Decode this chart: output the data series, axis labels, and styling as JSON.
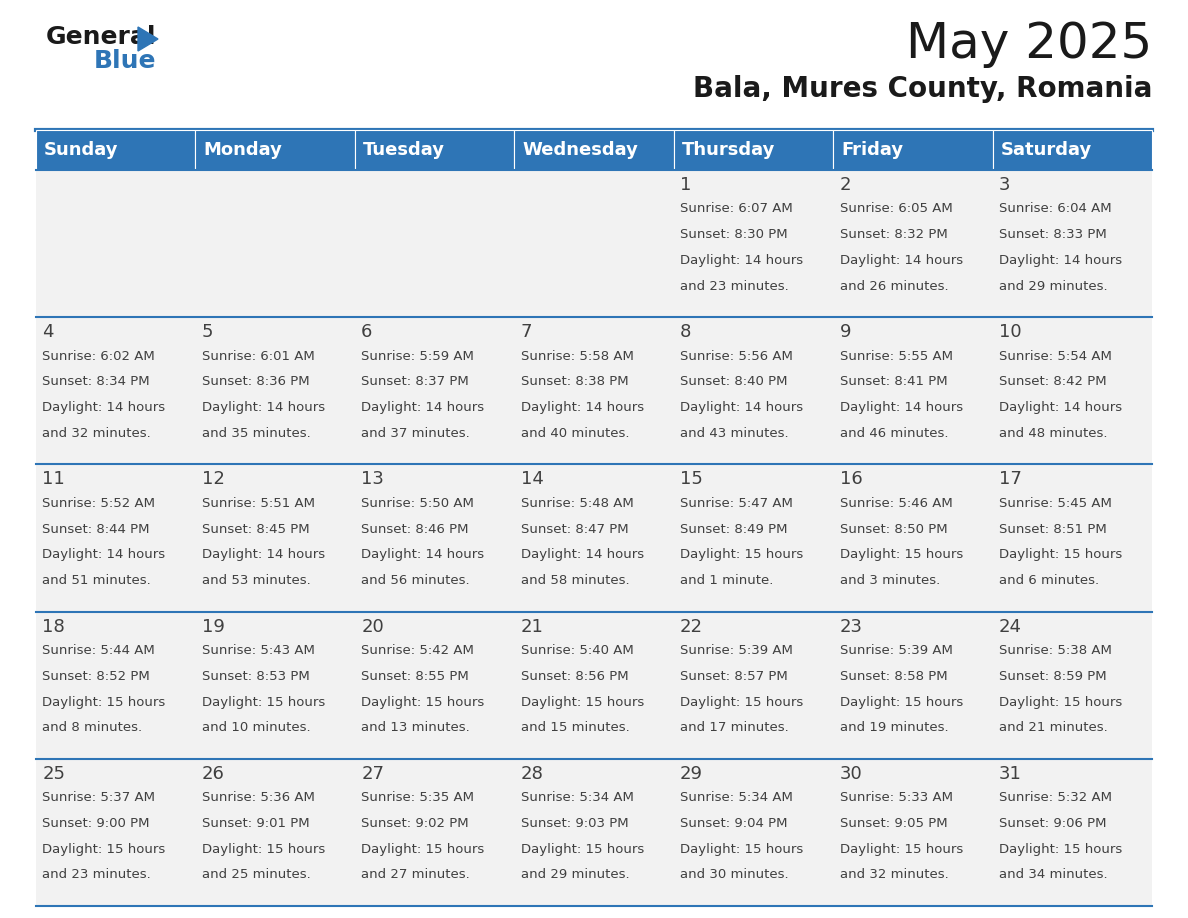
{
  "title": "May 2025",
  "subtitle": "Bala, Mures County, Romania",
  "days_of_week": [
    "Sunday",
    "Monday",
    "Tuesday",
    "Wednesday",
    "Thursday",
    "Friday",
    "Saturday"
  ],
  "header_bg": "#2E75B6",
  "header_text_color": "#FFFFFF",
  "cell_bg": "#F2F2F2",
  "separator_color": "#2E75B6",
  "text_color": "#404040",
  "title_color": "#1a1a1a",
  "weeks": [
    {
      "days": [
        {
          "day": null,
          "sunrise": null,
          "sunset": null,
          "daylight": null
        },
        {
          "day": null,
          "sunrise": null,
          "sunset": null,
          "daylight": null
        },
        {
          "day": null,
          "sunrise": null,
          "sunset": null,
          "daylight": null
        },
        {
          "day": null,
          "sunrise": null,
          "sunset": null,
          "daylight": null
        },
        {
          "day": 1,
          "sunrise": "6:07 AM",
          "sunset": "8:30 PM",
          "daylight": "14 hours and 23 minutes."
        },
        {
          "day": 2,
          "sunrise": "6:05 AM",
          "sunset": "8:32 PM",
          "daylight": "14 hours and 26 minutes."
        },
        {
          "day": 3,
          "sunrise": "6:04 AM",
          "sunset": "8:33 PM",
          "daylight": "14 hours and 29 minutes."
        }
      ]
    },
    {
      "days": [
        {
          "day": 4,
          "sunrise": "6:02 AM",
          "sunset": "8:34 PM",
          "daylight": "14 hours and 32 minutes."
        },
        {
          "day": 5,
          "sunrise": "6:01 AM",
          "sunset": "8:36 PM",
          "daylight": "14 hours and 35 minutes."
        },
        {
          "day": 6,
          "sunrise": "5:59 AM",
          "sunset": "8:37 PM",
          "daylight": "14 hours and 37 minutes."
        },
        {
          "day": 7,
          "sunrise": "5:58 AM",
          "sunset": "8:38 PM",
          "daylight": "14 hours and 40 minutes."
        },
        {
          "day": 8,
          "sunrise": "5:56 AM",
          "sunset": "8:40 PM",
          "daylight": "14 hours and 43 minutes."
        },
        {
          "day": 9,
          "sunrise": "5:55 AM",
          "sunset": "8:41 PM",
          "daylight": "14 hours and 46 minutes."
        },
        {
          "day": 10,
          "sunrise": "5:54 AM",
          "sunset": "8:42 PM",
          "daylight": "14 hours and 48 minutes."
        }
      ]
    },
    {
      "days": [
        {
          "day": 11,
          "sunrise": "5:52 AM",
          "sunset": "8:44 PM",
          "daylight": "14 hours and 51 minutes."
        },
        {
          "day": 12,
          "sunrise": "5:51 AM",
          "sunset": "8:45 PM",
          "daylight": "14 hours and 53 minutes."
        },
        {
          "day": 13,
          "sunrise": "5:50 AM",
          "sunset": "8:46 PM",
          "daylight": "14 hours and 56 minutes."
        },
        {
          "day": 14,
          "sunrise": "5:48 AM",
          "sunset": "8:47 PM",
          "daylight": "14 hours and 58 minutes."
        },
        {
          "day": 15,
          "sunrise": "5:47 AM",
          "sunset": "8:49 PM",
          "daylight": "15 hours and 1 minute."
        },
        {
          "day": 16,
          "sunrise": "5:46 AM",
          "sunset": "8:50 PM",
          "daylight": "15 hours and 3 minutes."
        },
        {
          "day": 17,
          "sunrise": "5:45 AM",
          "sunset": "8:51 PM",
          "daylight": "15 hours and 6 minutes."
        }
      ]
    },
    {
      "days": [
        {
          "day": 18,
          "sunrise": "5:44 AM",
          "sunset": "8:52 PM",
          "daylight": "15 hours and 8 minutes."
        },
        {
          "day": 19,
          "sunrise": "5:43 AM",
          "sunset": "8:53 PM",
          "daylight": "15 hours and 10 minutes."
        },
        {
          "day": 20,
          "sunrise": "5:42 AM",
          "sunset": "8:55 PM",
          "daylight": "15 hours and 13 minutes."
        },
        {
          "day": 21,
          "sunrise": "5:40 AM",
          "sunset": "8:56 PM",
          "daylight": "15 hours and 15 minutes."
        },
        {
          "day": 22,
          "sunrise": "5:39 AM",
          "sunset": "8:57 PM",
          "daylight": "15 hours and 17 minutes."
        },
        {
          "day": 23,
          "sunrise": "5:39 AM",
          "sunset": "8:58 PM",
          "daylight": "15 hours and 19 minutes."
        },
        {
          "day": 24,
          "sunrise": "5:38 AM",
          "sunset": "8:59 PM",
          "daylight": "15 hours and 21 minutes."
        }
      ]
    },
    {
      "days": [
        {
          "day": 25,
          "sunrise": "5:37 AM",
          "sunset": "9:00 PM",
          "daylight": "15 hours and 23 minutes."
        },
        {
          "day": 26,
          "sunrise": "5:36 AM",
          "sunset": "9:01 PM",
          "daylight": "15 hours and 25 minutes."
        },
        {
          "day": 27,
          "sunrise": "5:35 AM",
          "sunset": "9:02 PM",
          "daylight": "15 hours and 27 minutes."
        },
        {
          "day": 28,
          "sunrise": "5:34 AM",
          "sunset": "9:03 PM",
          "daylight": "15 hours and 29 minutes."
        },
        {
          "day": 29,
          "sunrise": "5:34 AM",
          "sunset": "9:04 PM",
          "daylight": "15 hours and 30 minutes."
        },
        {
          "day": 30,
          "sunrise": "5:33 AM",
          "sunset": "9:05 PM",
          "daylight": "15 hours and 32 minutes."
        },
        {
          "day": 31,
          "sunrise": "5:32 AM",
          "sunset": "9:06 PM",
          "daylight": "15 hours and 34 minutes."
        }
      ]
    }
  ]
}
